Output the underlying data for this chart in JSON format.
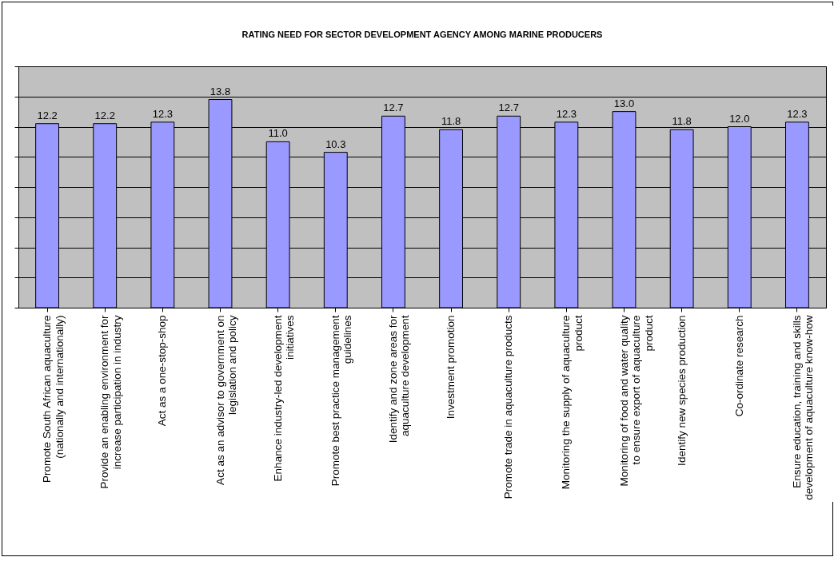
{
  "chart_data": {
    "type": "bar",
    "title": "RATING NEED FOR SECTOR DEVELOPMENT AGENCY AMONG MARINE PRODUCERS",
    "categories": [
      "Promote South African aquaculture (nationally and internationally)",
      "Provide an enabling environment for increase participation in industry",
      "Act as a one-stop-shop",
      "Act as an advisor to government on legislation and policy",
      "Enhance industry-led development initiatives",
      "Promote best practice management guidelines",
      "Identify and zone areas for aquaculture development",
      "Investment  promotion",
      "Promote trade in aquaculture products",
      "Monitoring the supply of aquaculture product",
      "Monitoring of food and water quality to ensure export of aquaculture product",
      "Identify new species production",
      "Co-ordinate research",
      "Ensure education, training and skills development of aquaculture know-how"
    ],
    "values": [
      12.2,
      12.2,
      12.3,
      13.8,
      11.0,
      10.3,
      12.7,
      11.8,
      12.7,
      12.3,
      13.0,
      11.8,
      12.0,
      12.3
    ],
    "color": "#9999ff",
    "value_labels": [
      "12.2",
      "12.2",
      "12.3",
      "13.8",
      "11.0",
      "10.3",
      "12.7",
      "11.8",
      "12.7",
      "12.3",
      "13.0",
      "11.8",
      "12.0",
      "12.3"
    ],
    "ylim": [
      0,
      16
    ],
    "yticks": [
      {
        "value": 0,
        "label": null
      },
      {
        "value": 2,
        "label": null
      },
      {
        "value": 4,
        "label": null
      },
      {
        "value": 6,
        "label": null
      },
      {
        "value": 8,
        "label": null
      },
      {
        "value": 10,
        "label": null
      },
      {
        "value": 12,
        "label": null
      },
      {
        "value": 14,
        "label": null
      },
      {
        "value": 16,
        "label": null
      }
    ],
    "grid": "y",
    "tick_labels": "x"
  }
}
